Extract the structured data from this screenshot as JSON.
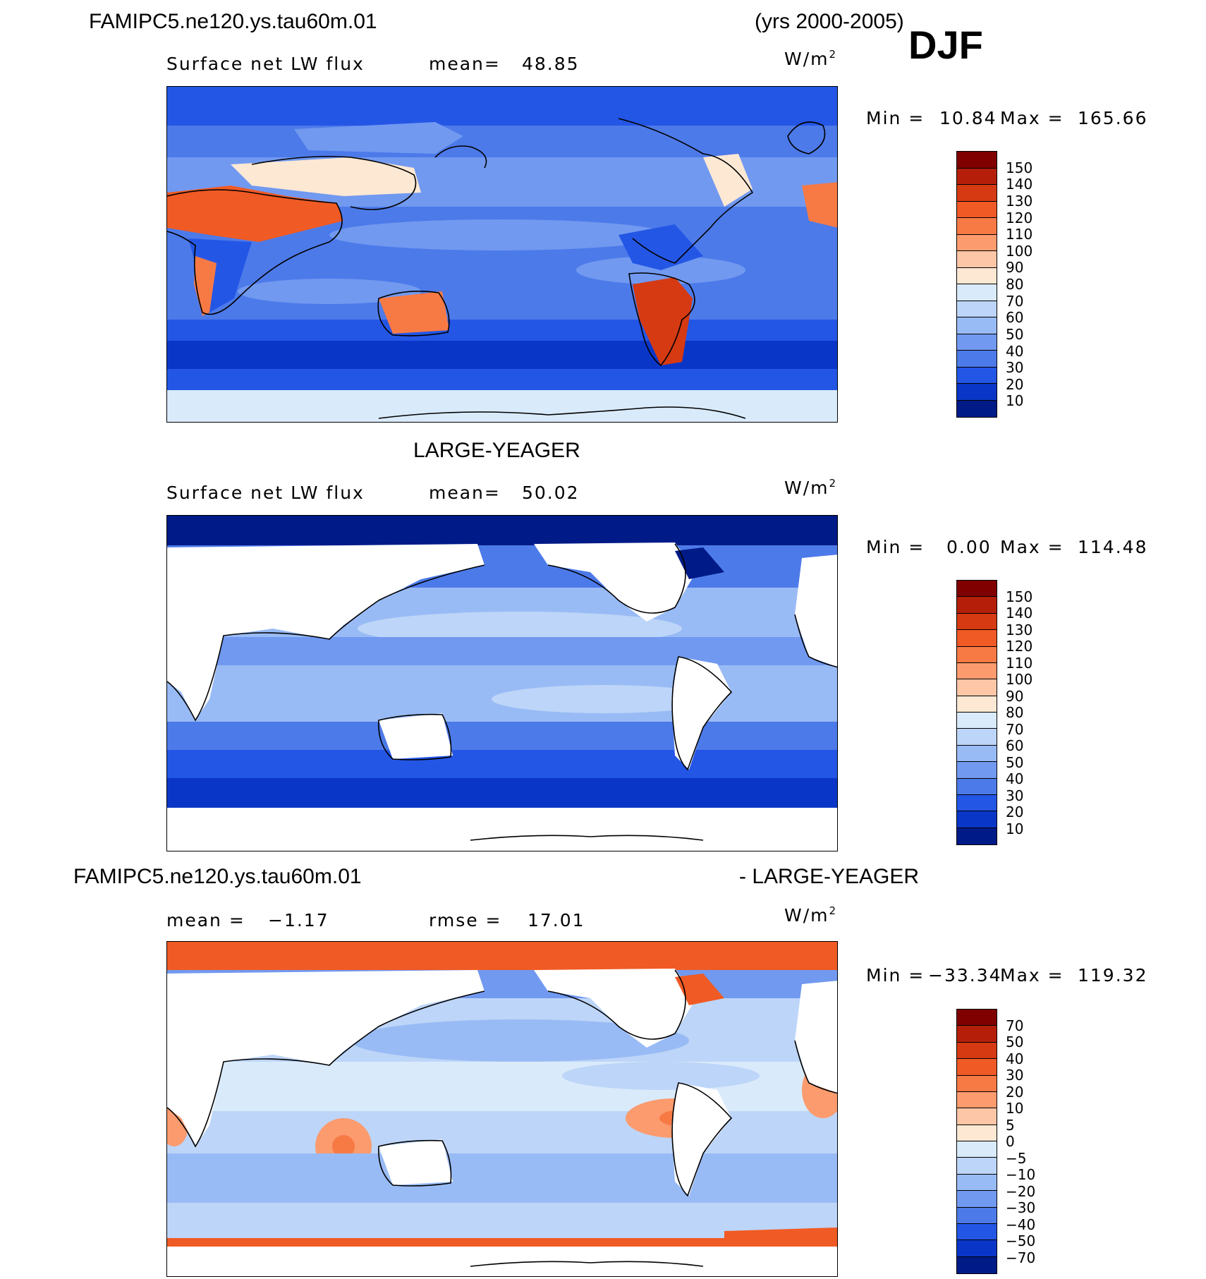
{
  "header": {
    "case_name": "FAMIPC5.ne120.ys.tau60m.01",
    "years": "(yrs 2000-2005)",
    "season": "DJF"
  },
  "panel1": {
    "variable": "Surface net LW flux",
    "mean_label": "mean=",
    "mean_value": "48.85",
    "units": "W/m",
    "units_exp": "2",
    "min_label": "Min =",
    "min_value": "10.84",
    "max_label": "Max =",
    "max_value": "165.66"
  },
  "panel2": {
    "title": "LARGE-YEAGER",
    "variable": "Surface net LW flux",
    "mean_label": "mean=",
    "mean_value": "50.02",
    "units": "W/m",
    "units_exp": "2",
    "min_label": "Min =",
    "min_value": "0.00",
    "max_label": "Max =",
    "max_value": "114.48"
  },
  "panel3": {
    "title_left": "FAMIPC5.ne120.ys.tau60m.01",
    "title_right": "- LARGE-YEAGER",
    "mean_label": "mean =",
    "mean_value": "−1.17",
    "rmse_label": "rmse =",
    "rmse_value": "17.01",
    "units": "W/m",
    "units_exp": "2",
    "min_label": "Min =",
    "min_value": "−33.34",
    "max_label": "Max =",
    "max_value": "119.32"
  },
  "colorbar_abs": {
    "labels": [
      "150",
      "140",
      "130",
      "120",
      "110",
      "100",
      "90",
      "80",
      "70",
      "60",
      "50",
      "40",
      "30",
      "20",
      "10"
    ],
    "colors": [
      "#800000",
      "#b51f0a",
      "#d63a12",
      "#f05a24",
      "#f77a45",
      "#fb9b6e",
      "#fdc6a6",
      "#fde8d4",
      "#d9eafb",
      "#bdd5f8",
      "#99bbf5",
      "#7199f0",
      "#4d7ae9",
      "#2456e6",
      "#0a36c8",
      "#001a87"
    ]
  },
  "colorbar_diff": {
    "labels": [
      "70",
      "50",
      "40",
      "30",
      "20",
      "10",
      "5",
      "0",
      "−5",
      "−10",
      "−20",
      "−30",
      "−40",
      "−50",
      "−70"
    ],
    "colors": [
      "#800000",
      "#b51f0a",
      "#d63a12",
      "#f05a24",
      "#f77a45",
      "#fb9b6e",
      "#fdc6a6",
      "#fde8d4",
      "#d9eafb",
      "#bdd5f8",
      "#99bbf5",
      "#7199f0",
      "#4d7ae9",
      "#2456e6",
      "#0a36c8",
      "#001a87"
    ]
  },
  "chart_data": [
    {
      "type": "heatmap",
      "title": "FAMIPC5.ne120.ys.tau60m.01",
      "subtitle": "Surface net LW flux",
      "units": "W/m2",
      "mean": 48.85,
      "min": 10.84,
      "max": 165.66,
      "contour_levels": [
        10,
        20,
        30,
        40,
        50,
        60,
        70,
        80,
        90,
        100,
        110,
        120,
        130,
        140,
        150
      ],
      "legend": "right"
    },
    {
      "type": "heatmap",
      "title": "LARGE-YEAGER",
      "subtitle": "Surface net LW flux",
      "units": "W/m2",
      "mean": 50.02,
      "min": 0.0,
      "max": 114.48,
      "contour_levels": [
        10,
        20,
        30,
        40,
        50,
        60,
        70,
        80,
        90,
        100,
        110,
        120,
        130,
        140,
        150
      ],
      "legend": "right"
    },
    {
      "type": "heatmap",
      "title": "FAMIPC5.ne120.ys.tau60m.01 - LARGE-YEAGER",
      "units": "W/m2",
      "mean": -1.17,
      "rmse": 17.01,
      "min": -33.34,
      "max": 119.32,
      "contour_levels": [
        -70,
        -50,
        -40,
        -30,
        -20,
        -10,
        -5,
        0,
        5,
        10,
        20,
        30,
        40,
        50,
        70
      ],
      "legend": "right"
    }
  ]
}
